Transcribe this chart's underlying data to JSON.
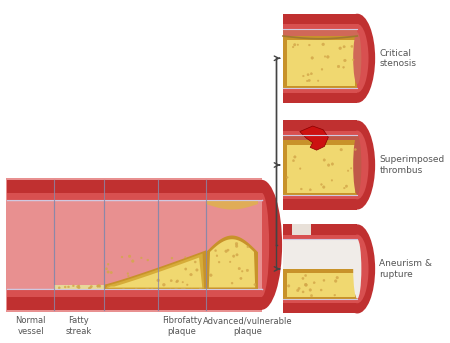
{
  "bg_color": "#ffffff",
  "labels_bottom": [
    "Normal\nvessel",
    "Fatty\nstreak",
    "Fibrofatty\nplaque",
    "Advanced/vulnerable\nplaque"
  ],
  "labels_right": [
    "Critical\nstenosis",
    "Superimposed\nthrombus",
    "Aneurism &\nrupture"
  ],
  "label_color": "#555555",
  "vessel_dark": "#c03030",
  "vessel_mid": "#d85050",
  "vessel_light": "#e87878",
  "vessel_lumen": "#e89090",
  "plaque_dark": "#c8922a",
  "plaque_mid": "#ddb840",
  "plaque_light": "#f0d870",
  "foam_color": "#d4a84b",
  "thrombus_color": "#cc1111",
  "arrow_color": "#444444",
  "endothelium": "#d0c8e0"
}
